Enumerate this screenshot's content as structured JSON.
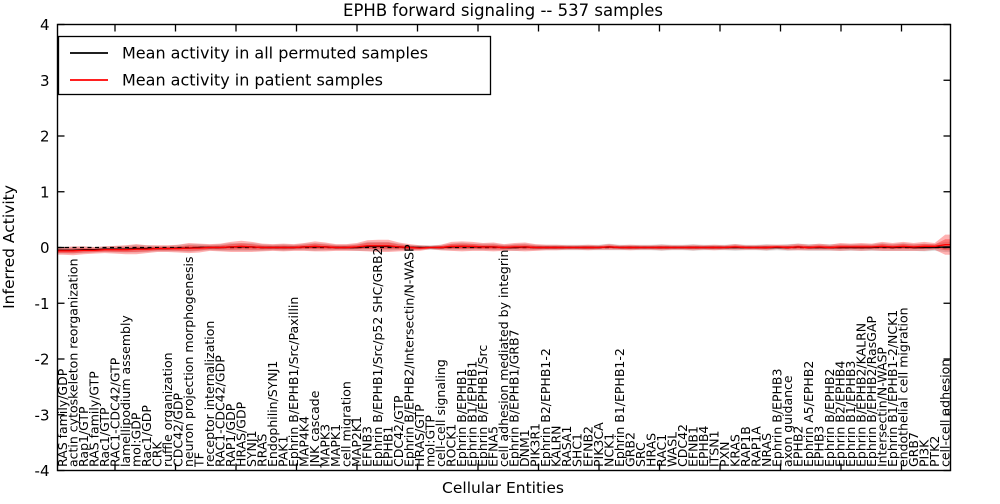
{
  "title": "EPHB forward signaling -- 537 samples",
  "x_axis_label": "Cellular Entities",
  "y_axis_label": "Inferred Activity",
  "legend": {
    "entries": [
      {
        "label": "Mean activity in all permuted samples",
        "color": "#000000"
      },
      {
        "label": "Mean activity in patient samples",
        "color": "#ff0000"
      }
    ]
  },
  "colors": {
    "permuted_line": "#000000",
    "patient_line": "#ff0000",
    "patient_band": "#ff0000",
    "permuted_band": "#000000",
    "zero_line": "#000000",
    "axis": "#000000",
    "background": "#ffffff"
  },
  "chart_data": {
    "type": "line",
    "title": "EPHB forward signaling -- 537 samples",
    "xlabel": "Cellular Entities",
    "ylabel": "Inferred Activity",
    "ylim": [
      -4,
      4
    ],
    "y_ticks": [
      -4,
      -3,
      -2,
      -1,
      0,
      1,
      2,
      3,
      4
    ],
    "grid": false,
    "legend_position": "upper left",
    "zero_line": {
      "y": 0,
      "style": "dashed",
      "color": "#000000"
    },
    "categories": [
      "RAS family/GDP",
      "actin cytoskeleton reorganization",
      "Rap1/GTP",
      "RAS family/GTP",
      "Rac1/GTP",
      "RAC1-CDC42/GTP",
      "lamellipodium assembly",
      "mol:GDP",
      "Rac1/GDP",
      "CRK",
      "ruffle organization",
      "CDC42/GDP",
      "neuron projection morphogenesis",
      "TF",
      "receptor internalization",
      "RAC1-CDC42/GDP",
      "RAP1/GDP",
      "HRAS/GDP",
      "SYNJ1",
      "RRAS",
      "Endophilin/SYNJ1",
      "PAK1",
      "Ephrin B/EPHB1/Src/Paxillin",
      "MAP4K4",
      "JNK cascade",
      "MAPK3",
      "MAPK1",
      "cell migration",
      "MAP2K1",
      "EFNB3",
      "Ephrin B/EPHB1/Src/p52 SHC/GRB2",
      "EPHB1",
      "CDC42/GTP",
      "Ephrin B/EPHB2/Intersectin/N-WASP",
      "HRAS/GTP",
      "mol:GTP",
      "cell-cell signaling",
      "ROCK1",
      "Ephrin B/EPHB1",
      "Ephrin B1/EPHB1",
      "Ephrin B/EPHB1/Src",
      "EFNA5",
      "cell adhesion mediated by integrin",
      "Ephrin B/EPHB1/GRB7",
      "DNM1",
      "PIK3R1",
      "Ephrin B2/EPHB1-2",
      "KALRN",
      "RASA1",
      "SHC1",
      "EFNB2",
      "PIK3CA",
      "NCK1",
      "Ephrin B1/EPHB1-2",
      "GRB2",
      "SRC",
      "HRAS",
      "RAC1",
      "WASL",
      "CDC42",
      "EFNB1",
      "EPHB4",
      "ITSN1",
      "PXN",
      "KRAS",
      "RAP1B",
      "RAP1A",
      "NRAS",
      "Ephrin B/EPHB3",
      "axon guidance",
      "EPHB2",
      "Ephrin A5/EPHB2",
      "EPHB3",
      "Ephrin B/EPHB2",
      "Ephrin B2/EPHB4",
      "Ephrin B1/EPHB3",
      "Ephrin B/EPHB2/KALRN",
      "Ephrin B/EPHB2/RasGAP",
      "Intersectin/N-WASP",
      "Ephrin B1/EPHB1-2/NCK1",
      "endothelial cell migration",
      "GRB7",
      "PI3K",
      "PTK2",
      "cell-cell adhesion"
    ],
    "series": [
      {
        "name": "Mean activity in all permuted samples",
        "color": "#000000",
        "values": [
          -0.05,
          -0.05,
          -0.04,
          -0.04,
          -0.03,
          -0.03,
          -0.03,
          -0.02,
          -0.02,
          -0.02,
          -0.02,
          -0.01,
          -0.01,
          0,
          0,
          0,
          0.01,
          0.01,
          0.01,
          0,
          0,
          0,
          0,
          0.01,
          0.01,
          0.01,
          0,
          0,
          0,
          0.02,
          0.02,
          0.02,
          0.01,
          0,
          0,
          0,
          0,
          0.01,
          0.02,
          0.01,
          0.01,
          0.01,
          0,
          0,
          0.01,
          0,
          0,
          0,
          0,
          0,
          0,
          0,
          0.01,
          0,
          0,
          0,
          0,
          0,
          0,
          0,
          0,
          0,
          0,
          0,
          0,
          0,
          0,
          0,
          0,
          0,
          0.01,
          0,
          0,
          0,
          0,
          0,
          0,
          0,
          0.01,
          0,
          0.01,
          0,
          0,
          0,
          0.01
        ]
      },
      {
        "name": "Mean activity in patient samples",
        "color": "#ff0000",
        "values": [
          -0.06,
          -0.06,
          -0.05,
          -0.05,
          -0.04,
          -0.04,
          -0.04,
          -0.03,
          -0.03,
          -0.02,
          -0.02,
          -0.02,
          -0.01,
          -0.01,
          0,
          0,
          0.01,
          0.02,
          0.01,
          0,
          0,
          0,
          0,
          0.01,
          0.02,
          0.01,
          0,
          0,
          0.01,
          0.03,
          0.03,
          0.03,
          0.01,
          0,
          -0.01,
          0,
          0,
          0.02,
          0.02,
          0.02,
          0.01,
          0.01,
          0,
          0.01,
          0.01,
          0,
          0,
          0,
          0,
          0,
          0,
          0,
          0.01,
          0,
          0,
          0,
          0,
          0,
          0,
          0,
          0,
          0,
          0,
          0,
          0.01,
          0,
          0,
          0,
          0.01,
          0,
          0.01,
          0,
          0.01,
          0,
          0.01,
          0.01,
          0.01,
          0.01,
          0.02,
          0.01,
          0.02,
          0.01,
          0.02,
          0.02,
          0.05
        ]
      }
    ],
    "bands": [
      {
        "name": "permuted-range-band",
        "series_index": 0,
        "color": "#000000",
        "opacity": 0.13,
        "halfwidths": [
          0.06,
          0.06,
          0.06,
          0.05,
          0.05,
          0.06,
          0.06,
          0.07,
          0.06,
          0.05,
          0.05,
          0.06,
          0.07,
          0.06,
          0.05,
          0.06,
          0.07,
          0.07,
          0.07,
          0.06,
          0.05,
          0.06,
          0.05,
          0.06,
          0.07,
          0.06,
          0.05,
          0.05,
          0.06,
          0.08,
          0.08,
          0.08,
          0.06,
          0.05,
          0.04,
          0.04,
          0.05,
          0.06,
          0.07,
          0.06,
          0.06,
          0.06,
          0.05,
          0.06,
          0.06,
          0.05,
          0.05,
          0.05,
          0.05,
          0.05,
          0.05,
          0.05,
          0.06,
          0.05,
          0.05,
          0.05,
          0.05,
          0.06,
          0.05,
          0.05,
          0.06,
          0.05,
          0.05,
          0.05,
          0.06,
          0.05,
          0.05,
          0.06,
          0.05,
          0.06,
          0.06,
          0.06,
          0.06,
          0.06,
          0.06,
          0.06,
          0.06,
          0.06,
          0.07,
          0.06,
          0.07,
          0.06,
          0.07,
          0.06,
          0.09
        ]
      },
      {
        "name": "patient-range-band",
        "series_index": 1,
        "color": "#ff0000",
        "opacity": 0.3,
        "inner_core_scale": 0.55,
        "halfwidths": [
          0.07,
          0.08,
          0.07,
          0.06,
          0.06,
          0.07,
          0.08,
          0.09,
          0.07,
          0.06,
          0.06,
          0.07,
          0.09,
          0.08,
          0.06,
          0.07,
          0.09,
          0.1,
          0.09,
          0.07,
          0.06,
          0.07,
          0.06,
          0.07,
          0.09,
          0.08,
          0.06,
          0.06,
          0.07,
          0.1,
          0.11,
          0.11,
          0.08,
          0.06,
          0.05,
          0.03,
          0.05,
          0.08,
          0.09,
          0.08,
          0.07,
          0.08,
          0.06,
          0.07,
          0.08,
          0.06,
          0.05,
          0.05,
          0.04,
          0.04,
          0.05,
          0.04,
          0.05,
          0.04,
          0.05,
          0.04,
          0.04,
          0.05,
          0.04,
          0.04,
          0.05,
          0.04,
          0.05,
          0.04,
          0.05,
          0.04,
          0.04,
          0.05,
          0.04,
          0.05,
          0.06,
          0.05,
          0.06,
          0.05,
          0.07,
          0.06,
          0.07,
          0.06,
          0.08,
          0.07,
          0.08,
          0.07,
          0.08,
          0.06,
          0.18
        ]
      }
    ]
  }
}
